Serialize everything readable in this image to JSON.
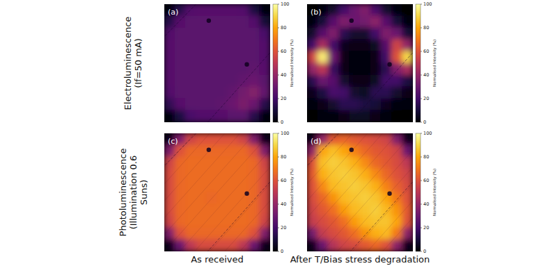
{
  "figure": {
    "row_labels": [
      [
        "Electroluminescence",
        "(If=50 mA)"
      ],
      [
        "Photoluminescence",
        "(Illumination 0.6",
        "Suns)"
      ]
    ],
    "column_labels": [
      "As received",
      "After T/Bias stress degradation"
    ]
  },
  "chart_data": [
    {
      "type": "heatmap",
      "label": "(a)",
      "tick_labels": false,
      "colorbar_label": "Normalised Intensity (%)",
      "colorbar_range": [
        0,
        100
      ],
      "colorbar_ticks": [
        0,
        20,
        40,
        60,
        80,
        100
      ],
      "cells": [
        [
          2,
          14,
          24,
          25,
          25,
          25,
          25,
          24,
          12,
          2
        ],
        [
          14,
          25,
          26,
          26,
          26,
          26,
          26,
          26,
          24,
          10
        ],
        [
          24,
          26,
          26,
          26,
          26,
          26,
          26,
          26,
          26,
          22
        ],
        [
          25,
          26,
          26,
          26,
          26,
          26,
          26,
          26,
          26,
          24
        ],
        [
          25,
          26,
          26,
          26,
          26,
          26,
          26,
          26,
          26,
          24
        ],
        [
          25,
          26,
          26,
          26,
          26,
          26,
          26,
          26,
          27,
          25
        ],
        [
          25,
          26,
          26,
          26,
          26,
          26,
          26,
          28,
          30,
          26
        ],
        [
          24,
          26,
          26,
          26,
          26,
          26,
          28,
          32,
          36,
          28
        ],
        [
          16,
          25,
          26,
          26,
          26,
          27,
          30,
          34,
          30,
          14
        ],
        [
          2,
          12,
          22,
          24,
          24,
          25,
          26,
          26,
          14,
          2
        ]
      ]
    },
    {
      "type": "heatmap",
      "label": "(b)",
      "tick_labels": false,
      "colorbar_label": "Normalised Intensity (%)",
      "colorbar_range": [
        0,
        100
      ],
      "colorbar_ticks": [
        0,
        20,
        40,
        60,
        80,
        100
      ],
      "cells": [
        [
          0,
          2,
          8,
          20,
          30,
          35,
          22,
          8,
          2,
          0
        ],
        [
          2,
          10,
          25,
          35,
          30,
          32,
          38,
          25,
          10,
          2
        ],
        [
          8,
          25,
          35,
          15,
          8,
          8,
          20,
          35,
          30,
          10
        ],
        [
          20,
          45,
          20,
          5,
          3,
          3,
          6,
          25,
          55,
          40
        ],
        [
          55,
          95,
          30,
          4,
          2,
          2,
          4,
          20,
          60,
          90
        ],
        [
          40,
          50,
          18,
          4,
          2,
          2,
          4,
          15,
          35,
          45
        ],
        [
          15,
          30,
          25,
          8,
          3,
          3,
          6,
          20,
          20,
          12
        ],
        [
          5,
          12,
          22,
          20,
          8,
          6,
          15,
          15,
          8,
          3
        ],
        [
          1,
          4,
          8,
          15,
          15,
          12,
          10,
          5,
          2,
          1
        ],
        [
          0,
          1,
          2,
          4,
          6,
          6,
          3,
          1,
          0,
          0
        ]
      ]
    },
    {
      "type": "heatmap",
      "label": "(c)",
      "tick_labels": false,
      "colorbar_label": "Normalised Intensity (%)",
      "colorbar_range": [
        0,
        100
      ],
      "colorbar_ticks": [
        0,
        20,
        40,
        60,
        80,
        100
      ],
      "cells": [
        [
          5,
          35,
          55,
          60,
          60,
          60,
          60,
          55,
          35,
          5
        ],
        [
          35,
          60,
          66,
          66,
          66,
          66,
          66,
          66,
          60,
          35
        ],
        [
          55,
          66,
          67,
          67,
          67,
          67,
          67,
          67,
          66,
          55
        ],
        [
          58,
          66,
          67,
          67,
          67,
          67,
          67,
          67,
          66,
          58
        ],
        [
          58,
          66,
          67,
          67,
          67,
          67,
          67,
          67,
          66,
          58
        ],
        [
          58,
          66,
          67,
          67,
          66,
          67,
          67,
          67,
          66,
          58
        ],
        [
          58,
          66,
          67,
          67,
          67,
          67,
          67,
          67,
          66,
          58
        ],
        [
          55,
          66,
          67,
          67,
          67,
          67,
          67,
          67,
          66,
          55
        ],
        [
          35,
          60,
          66,
          66,
          66,
          66,
          66,
          66,
          60,
          35
        ],
        [
          5,
          30,
          50,
          58,
          58,
          58,
          58,
          50,
          30,
          5
        ]
      ]
    },
    {
      "type": "heatmap",
      "label": "(d)",
      "tick_labels": false,
      "colorbar_label": "Normalised Intensity (%)",
      "colorbar_range": [
        0,
        100
      ],
      "colorbar_ticks": [
        0,
        20,
        40,
        60,
        80,
        100
      ],
      "cells": [
        [
          5,
          40,
          62,
          65,
          62,
          60,
          58,
          55,
          35,
          5
        ],
        [
          40,
          80,
          85,
          80,
          72,
          66,
          62,
          60,
          55,
          30
        ],
        [
          60,
          85,
          88,
          86,
          82,
          74,
          66,
          62,
          58,
          50
        ],
        [
          62,
          82,
          86,
          88,
          86,
          82,
          74,
          66,
          60,
          55
        ],
        [
          60,
          74,
          84,
          86,
          88,
          86,
          82,
          72,
          64,
          58
        ],
        [
          58,
          66,
          76,
          84,
          86,
          88,
          86,
          80,
          70,
          60
        ],
        [
          55,
          62,
          68,
          78,
          84,
          86,
          88,
          84,
          76,
          62
        ],
        [
          52,
          58,
          62,
          68,
          78,
          84,
          86,
          86,
          80,
          60
        ],
        [
          32,
          52,
          58,
          62,
          68,
          76,
          82,
          84,
          70,
          38
        ],
        [
          5,
          30,
          48,
          55,
          58,
          62,
          66,
          60,
          38,
          5
        ]
      ]
    }
  ]
}
